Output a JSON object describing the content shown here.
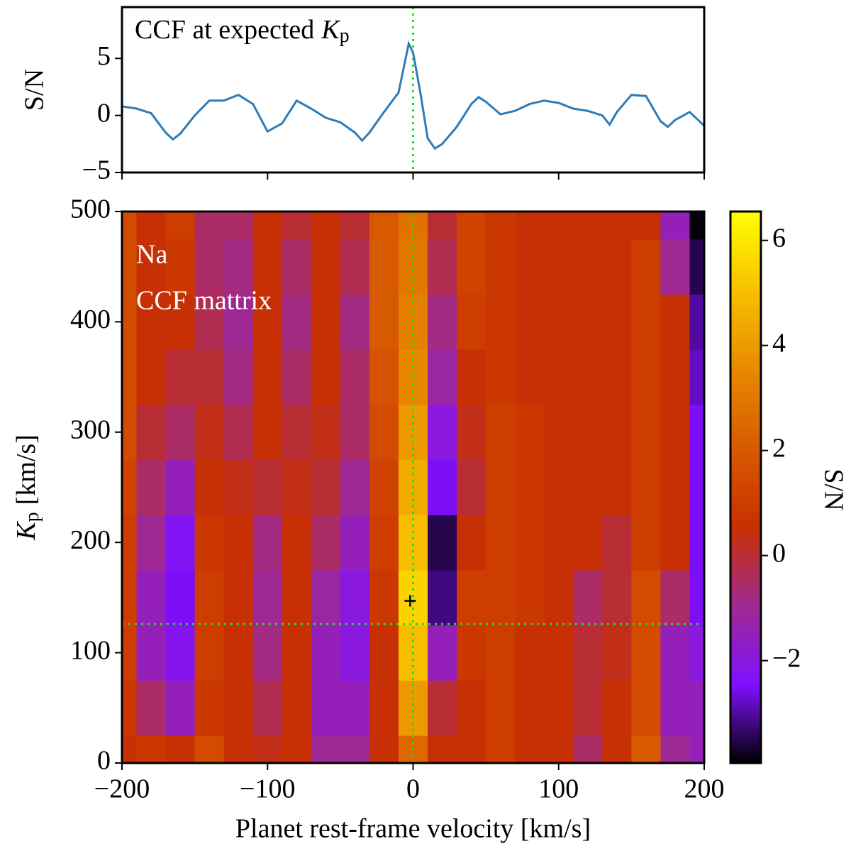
{
  "chart_data": [
    {
      "type": "line",
      "title": {
        "text": "CCF at expected",
        "symbol": "K",
        "subscript": "p"
      },
      "ylabel": "S/N",
      "color": "#2e7cb8",
      "x": [
        -200,
        -190,
        -180,
        -170,
        -165,
        -160,
        -150,
        -140,
        -130,
        -120,
        -110,
        -100,
        -90,
        -80,
        -70,
        -60,
        -50,
        -40,
        -35,
        -30,
        -20,
        -10,
        -3,
        0,
        5,
        10,
        15,
        20,
        30,
        40,
        45,
        50,
        60,
        70,
        80,
        90,
        100,
        110,
        120,
        130,
        135,
        140,
        150,
        160,
        170,
        175,
        180,
        190,
        200
      ],
      "y": [
        0.8,
        0.6,
        0.2,
        -1.5,
        -2.1,
        -1.6,
        0,
        1.3,
        1.3,
        1.8,
        1.0,
        -1.4,
        -0.7,
        1.3,
        0.6,
        -0.2,
        -0.6,
        -1.5,
        -2.2,
        -1.5,
        0.3,
        2.0,
        6.3,
        5.5,
        2.0,
        -2.0,
        -2.9,
        -2.5,
        -1.0,
        1.0,
        1.6,
        1.2,
        0.1,
        0.4,
        1.0,
        1.3,
        1.1,
        0.6,
        0.4,
        0,
        -0.8,
        0.3,
        1.8,
        1.7,
        -0.5,
        -1.0,
        -0.4,
        0.3,
        -0.9
      ],
      "xlim": [
        -200,
        200
      ],
      "xticks": [
        -200,
        -100,
        0,
        100,
        200
      ],
      "ylim": [
        -5,
        9.5
      ],
      "yticks": [
        {
          "value": -5,
          "label": "−5"
        },
        0,
        5
      ],
      "marker_x": 0,
      "marker_color": "#22dd22"
    },
    {
      "type": "heatmap",
      "annotation": [
        "Na",
        "CCF mattrix"
      ],
      "xlabel": "Planet rest-frame velocity [km/s]",
      "ylabel": {
        "symbol": "K",
        "subscript": "p",
        "text": "[km/s]"
      },
      "colorbar_label": "S/N",
      "x": [
        -200,
        -180,
        -160,
        -140,
        -120,
        -100,
        -80,
        -60,
        -40,
        -20,
        0,
        20,
        40,
        60,
        80,
        100,
        120,
        140,
        160,
        180,
        200
      ],
      "y": [
        0,
        50,
        100,
        150,
        200,
        250,
        300,
        350,
        400,
        450,
        500
      ],
      "z": [
        [
          0.5,
          0.8,
          0.5,
          1.5,
          0.5,
          0.3,
          0.5,
          -1,
          -1,
          0.5,
          2.5,
          0.5,
          0.5,
          1,
          0.5,
          0.5,
          -0.5,
          0.5,
          2,
          -1,
          -1.5
        ],
        [
          0.8,
          -0.5,
          -1.5,
          0.8,
          0.5,
          -0.3,
          0.5,
          -1.5,
          -1.5,
          0.5,
          4,
          0,
          0.5,
          1,
          0.5,
          0.5,
          0,
          0.5,
          1.5,
          -1.5,
          -1.5
        ],
        [
          1,
          -1.5,
          -2.2,
          1,
          0.5,
          -0.8,
          0.5,
          -1.5,
          -2,
          0.5,
          5,
          -1.5,
          0.8,
          1,
          0.5,
          0.5,
          0,
          0.3,
          1.5,
          -1.5,
          -2
        ],
        [
          1,
          -1.5,
          -2.5,
          1,
          0.5,
          -1,
          0.5,
          -1.2,
          -2,
          0.8,
          5.5,
          -3.2,
          1,
          1,
          0.8,
          0.5,
          -0.5,
          0,
          1.5,
          -0.5,
          -2.5
        ],
        [
          1,
          -1,
          -2.3,
          0.8,
          0.5,
          -0.8,
          0.5,
          -0.5,
          -1.5,
          1,
          5,
          -3.5,
          0.5,
          1,
          0.8,
          0.5,
          0.5,
          0,
          1,
          0.5,
          -2.5
        ],
        [
          1.2,
          -0.5,
          -1.5,
          0.5,
          0.3,
          0,
          0.3,
          0,
          -1,
          1.2,
          4.5,
          -2.5,
          0,
          1,
          0.8,
          0.5,
          0.5,
          0.5,
          1,
          0.5,
          -2.5
        ],
        [
          1.5,
          0,
          -0.5,
          0.3,
          -0.3,
          0.5,
          0,
          0.3,
          -0.5,
          1.5,
          4,
          -2,
          0.3,
          1,
          0.8,
          0.5,
          0.5,
          0.5,
          1,
          0.5,
          -2.5
        ],
        [
          1.5,
          0.5,
          0,
          0,
          -0.8,
          0.5,
          -0.5,
          0.5,
          -0.5,
          1.8,
          3.5,
          -1.2,
          0.5,
          0.8,
          0.5,
          0.5,
          0.5,
          0.5,
          1,
          0.5,
          -2.8
        ],
        [
          1.5,
          0.5,
          0.5,
          -0.3,
          -1,
          0.5,
          -0.8,
          0.5,
          -0.8,
          2,
          3.2,
          -0.8,
          1,
          0.8,
          0.5,
          0.5,
          0.5,
          0.5,
          1,
          0.5,
          -3
        ],
        [
          1.5,
          0.5,
          0.8,
          -0.5,
          -0.8,
          0.5,
          -0.5,
          0.5,
          -0.3,
          2,
          3,
          -0.3,
          1.2,
          0.8,
          0.5,
          0.5,
          0.5,
          0.5,
          1,
          -1,
          -3.5
        ],
        [
          1.5,
          0.5,
          1,
          -0.5,
          -0.5,
          0.5,
          0,
          0.5,
          0,
          2,
          2.8,
          0,
          1.2,
          0.8,
          0.5,
          0.5,
          0.5,
          0.5,
          0.5,
          -1.5,
          -3.9
        ]
      ],
      "xlim": [
        -200,
        200
      ],
      "xticks": [
        {
          "value": -200,
          "label": "−200"
        },
        {
          "value": -100,
          "label": "−100"
        },
        0,
        100,
        200
      ],
      "ylim": [
        0,
        500
      ],
      "yticks": [
        0,
        100,
        200,
        300,
        400,
        500
      ],
      "zlim": [
        -3.95,
        6.55
      ],
      "zticks": [
        {
          "value": -2,
          "label": "−2"
        },
        0,
        2,
        4,
        6
      ],
      "colormap": [
        "#000000",
        "#8010ff",
        "#a02a90",
        "#c83000",
        "#d85a00",
        "#e88a00",
        "#f8c000",
        "#ffff00"
      ],
      "expected": {
        "x": 0,
        "y": 126
      },
      "peak": {
        "x": -2,
        "y": 147
      },
      "marker_color": "#22dd22"
    }
  ]
}
